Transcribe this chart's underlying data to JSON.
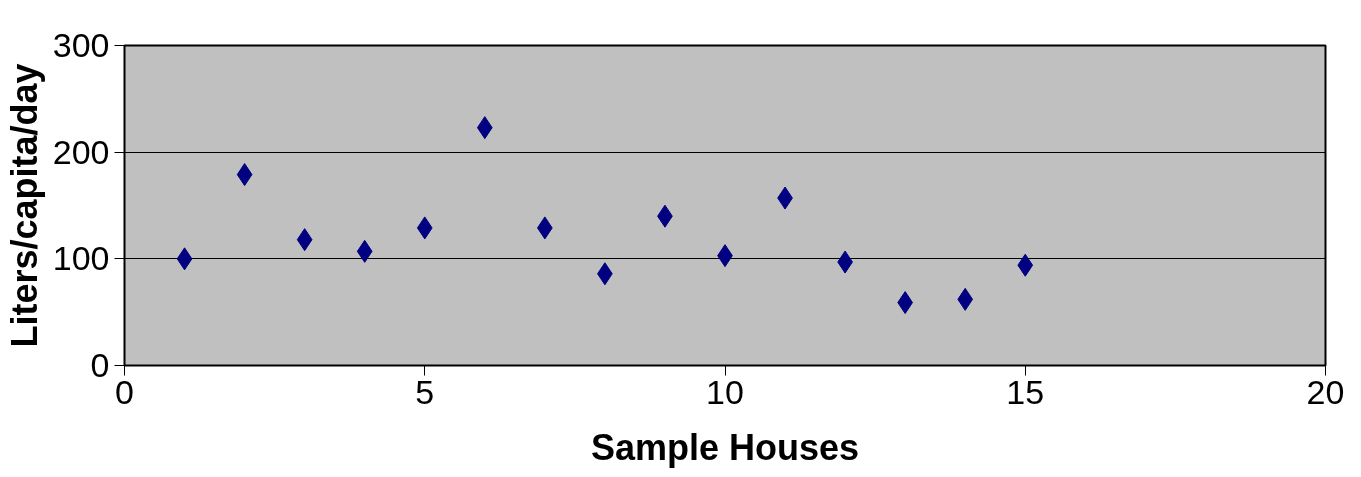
{
  "chart_data": {
    "type": "scatter",
    "xlabel": "Sample Houses",
    "ylabel": "Liters/capita/day",
    "x": [
      1,
      2,
      3,
      4,
      5,
      6,
      7,
      8,
      9,
      10,
      11,
      12,
      13,
      14,
      15
    ],
    "series": [
      {
        "color": "#000080",
        "values": [
          100,
          179,
          118,
          107,
          129,
          223,
          129,
          86,
          140,
          103,
          157,
          97,
          59,
          62,
          94
        ]
      }
    ],
    "xlim": [
      0,
      20
    ],
    "xticks": [
      0,
      5,
      10,
      15,
      20
    ],
    "ylim": [
      0,
      300
    ],
    "yticks": [
      0,
      100,
      200,
      300
    ],
    "grid": "y",
    "marker": "diamond"
  }
}
